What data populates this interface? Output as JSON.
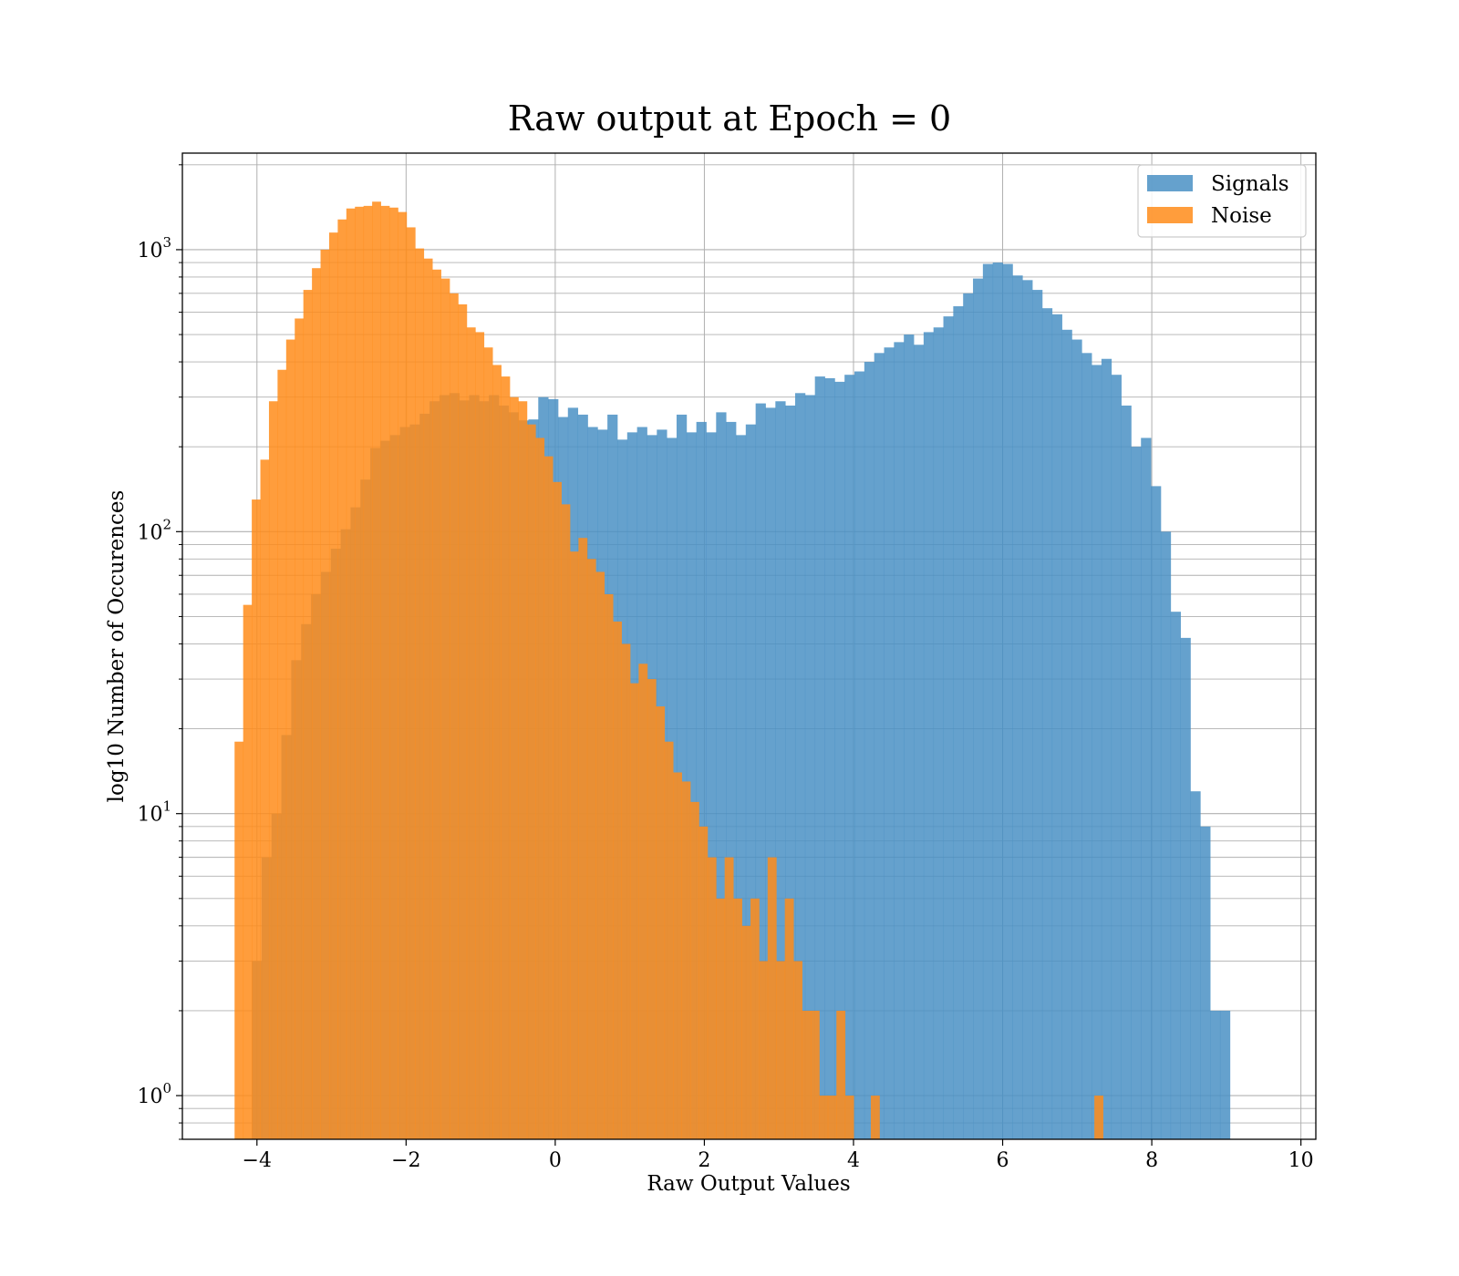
{
  "chart_data": {
    "type": "histogram",
    "title": "Raw output at Epoch = 0",
    "xlabel": "Raw Output Values",
    "ylabel": "log10 Number of Occurences",
    "xlim": [
      -5.0,
      10.2
    ],
    "ylim": [
      0.7,
      2200
    ],
    "yscale": "log",
    "x_ticks": [
      {
        "value": -4,
        "label": "−4"
      },
      {
        "value": -2,
        "label": "−2"
      },
      {
        "value": 0,
        "label": "0"
      },
      {
        "value": 2,
        "label": "2"
      },
      {
        "value": 4,
        "label": "4"
      },
      {
        "value": 6,
        "label": "6"
      },
      {
        "value": 8,
        "label": "8"
      },
      {
        "value": 10,
        "label": "10"
      }
    ],
    "y_ticks": [
      {
        "value": 1,
        "base": "10",
        "exp": "0"
      },
      {
        "value": 10,
        "base": "10",
        "exp": "1"
      },
      {
        "value": 100,
        "base": "10",
        "exp": "2"
      },
      {
        "value": 1000,
        "base": "10",
        "exp": "3"
      }
    ],
    "grid": true,
    "grid_minor": true,
    "legend": "top-right",
    "series": [
      {
        "name": "Signals",
        "color": "#4a90c4",
        "x_start": -4.07,
        "bin_width": 0.1325,
        "counts": [
          3,
          7,
          10,
          19,
          35,
          47,
          60,
          72,
          87,
          102,
          122,
          153,
          198,
          210,
          220,
          235,
          240,
          262,
          290,
          305,
          310,
          292,
          305,
          290,
          305,
          280,
          265,
          248,
          250,
          300,
          295,
          255,
          275,
          260,
          235,
          230,
          260,
          212,
          225,
          235,
          220,
          230,
          215,
          260,
          225,
          245,
          225,
          265,
          245,
          220,
          240,
          285,
          275,
          290,
          280,
          310,
          305,
          355,
          350,
          340,
          360,
          370,
          400,
          430,
          450,
          470,
          500,
          460,
          510,
          530,
          580,
          630,
          700,
          790,
          890,
          900,
          890,
          810,
          780,
          720,
          620,
          590,
          520,
          480,
          430,
          390,
          410,
          360,
          280,
          200,
          215,
          145,
          100,
          52,
          42,
          12,
          9,
          2,
          2
        ]
      },
      {
        "name": "Noise",
        "color": "#ff8c1a",
        "x_start": -4.3,
        "bin_width": 0.1153,
        "counts": [
          18,
          55,
          130,
          180,
          290,
          375,
          480,
          570,
          720,
          860,
          1000,
          1150,
          1280,
          1400,
          1420,
          1430,
          1480,
          1430,
          1410,
          1360,
          1200,
          1010,
          930,
          850,
          790,
          700,
          640,
          530,
          510,
          450,
          390,
          355,
          300,
          290,
          240,
          215,
          185,
          150,
          125,
          85,
          95,
          80,
          72,
          60,
          48,
          40,
          29,
          34,
          30,
          24,
          18,
          14,
          13,
          11,
          9,
          7,
          5,
          7,
          5,
          4,
          5,
          3,
          7,
          3,
          5,
          3,
          2,
          2,
          1,
          1,
          2,
          1,
          0,
          0,
          1,
          0,
          0,
          0,
          0,
          0,
          0,
          0,
          0,
          0,
          0,
          0,
          0,
          0,
          0,
          0,
          0,
          0,
          0,
          0,
          0,
          0,
          0,
          0,
          0,
          0,
          1
        ]
      }
    ]
  }
}
